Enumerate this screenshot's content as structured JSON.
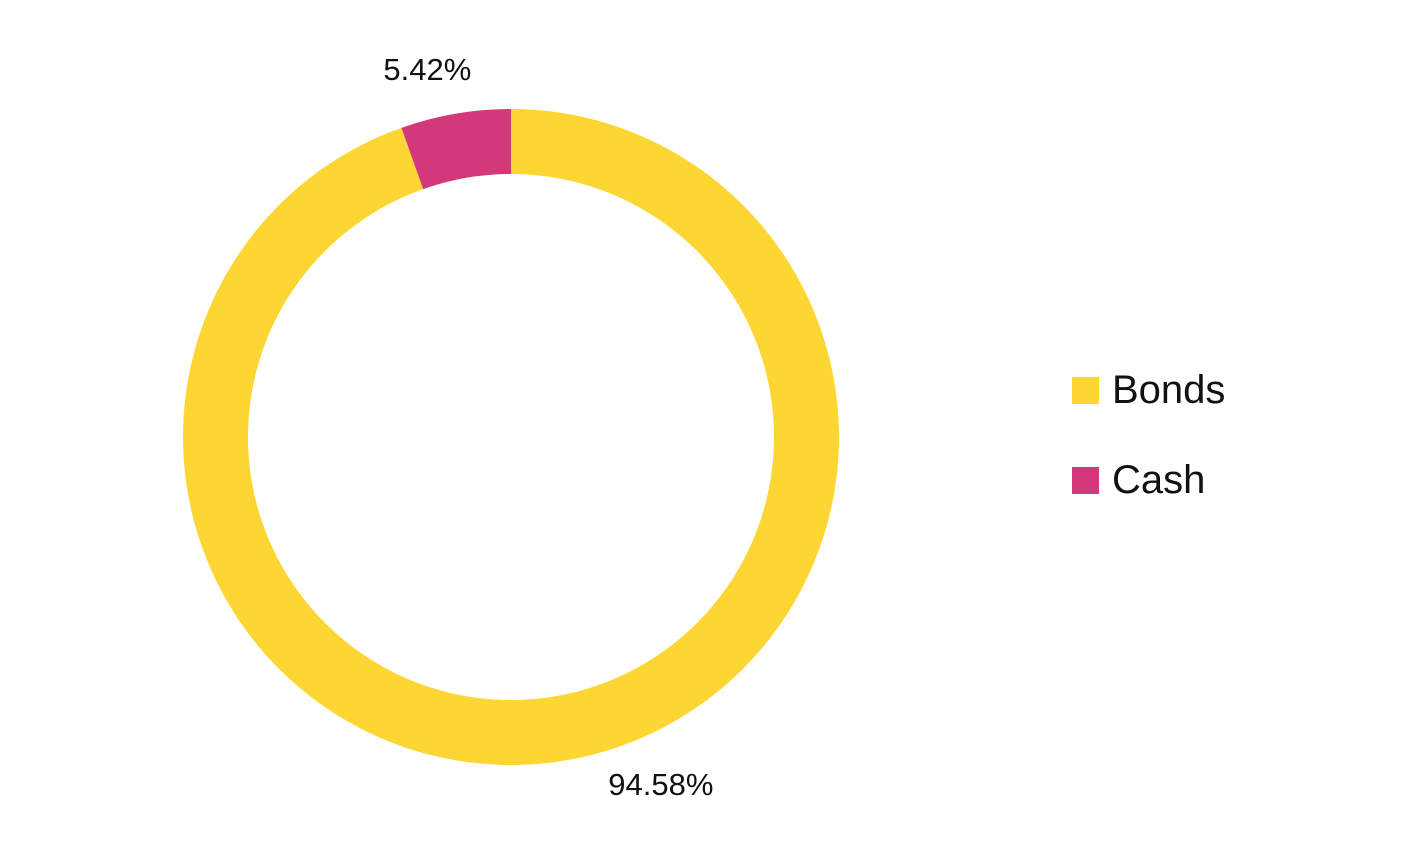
{
  "chart_data": {
    "type": "pie",
    "style": "donut",
    "title": "",
    "categories": [
      "Bonds",
      "Cash"
    ],
    "values": [
      94.58,
      5.42
    ],
    "unit": "%",
    "data_labels": [
      "94.58%",
      "5.42%"
    ],
    "colors": [
      "#FDD633",
      "#D2387A"
    ],
    "legend_position": "right",
    "start_angle": "12 o'clock",
    "direction": "clockwise"
  },
  "legend": {
    "items": [
      {
        "label": "Bonds",
        "color": "#FDD633"
      },
      {
        "label": "Cash",
        "color": "#D2387A"
      }
    ]
  }
}
